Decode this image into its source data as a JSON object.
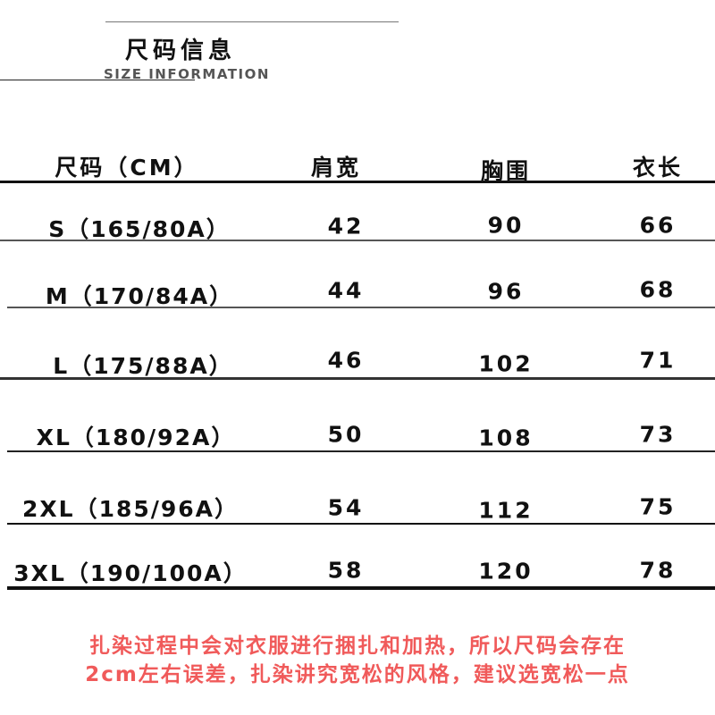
{
  "header": {
    "title_cn": "尺码信息",
    "title_en": "SIZE INFORMATION"
  },
  "table": {
    "columns": [
      "尺码（CM）",
      "肩宽",
      "胸围",
      "衣长"
    ],
    "rows": [
      {
        "size": "S（165/80A）",
        "shoulder": "42",
        "chest": "90",
        "length": "66"
      },
      {
        "size": "M（170/84A）",
        "shoulder": "44",
        "chest": "96",
        "length": "68"
      },
      {
        "size": "L（175/88A）",
        "shoulder": "46",
        "chest": "102",
        "length": "71"
      },
      {
        "size": "XL（180/92A）",
        "shoulder": "50",
        "chest": "108",
        "length": "73"
      },
      {
        "size": "2XL（185/96A）",
        "shoulder": "54",
        "chest": "112",
        "length": "75"
      },
      {
        "size": "3XL（190/100A）",
        "shoulder": "58",
        "chest": "120",
        "length": "78"
      }
    ]
  },
  "note": {
    "line1": "扎染过程中会对衣服进行捆扎和加热，所以尺码会存在",
    "line2": "2cm左右误差，扎染讲究宽松的风格，建议选宽松一点",
    "color": "#f05a5a"
  }
}
